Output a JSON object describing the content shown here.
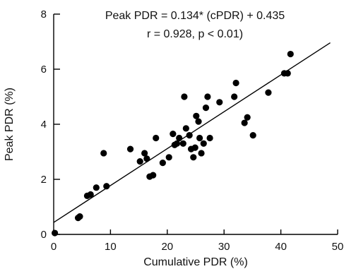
{
  "chart_data": {
    "type": "scatter",
    "title": "",
    "xlabel": "Cumulative PDR (%)",
    "ylabel": "Peak PDR (%)",
    "xlim": [
      0,
      50
    ],
    "ylim": [
      0,
      8
    ],
    "xticks": [
      "0",
      "10",
      "20",
      "30",
      "40",
      "50"
    ],
    "yticks": [
      "0",
      "2",
      "4",
      "6",
      "8"
    ],
    "annotations": [
      "Peak PDR = 0.134* (cPDR) + 0.435",
      "r = 0.928, p < 0.01)"
    ],
    "fit": {
      "slope": 0.134,
      "intercept": 0.435
    },
    "grid": false,
    "x": [
      0.2,
      4.3,
      4.6,
      5.9,
      6.5,
      7.5,
      8.8,
      9.3,
      13.5,
      15.2,
      16.0,
      16.4,
      16.9,
      17.5,
      18.0,
      19.2,
      20.3,
      21.0,
      21.3,
      21.7,
      22.1,
      23.0,
      23.3,
      23.9,
      24.2,
      24.6,
      25.1,
      25.5,
      25.7,
      26.0,
      26.4,
      26.8,
      27.1,
      27.5,
      29.2,
      31.8,
      32.1,
      33.6,
      34.1,
      35.1,
      37.8,
      40.6,
      41.2,
      41.7,
      22.8,
      24.9
    ],
    "y": [
      0.05,
      0.6,
      0.65,
      1.4,
      1.45,
      1.7,
      2.95,
      1.75,
      3.1,
      2.65,
      2.95,
      2.75,
      2.1,
      2.15,
      3.5,
      2.6,
      2.8,
      3.65,
      3.25,
      3.3,
      3.5,
      5.0,
      3.85,
      3.6,
      3.1,
      2.8,
      4.3,
      4.1,
      3.5,
      2.95,
      3.3,
      4.6,
      5.0,
      3.5,
      4.8,
      5.0,
      5.5,
      4.05,
      4.25,
      3.6,
      5.15,
      5.85,
      5.85,
      6.55,
      3.3,
      3.15
    ]
  }
}
